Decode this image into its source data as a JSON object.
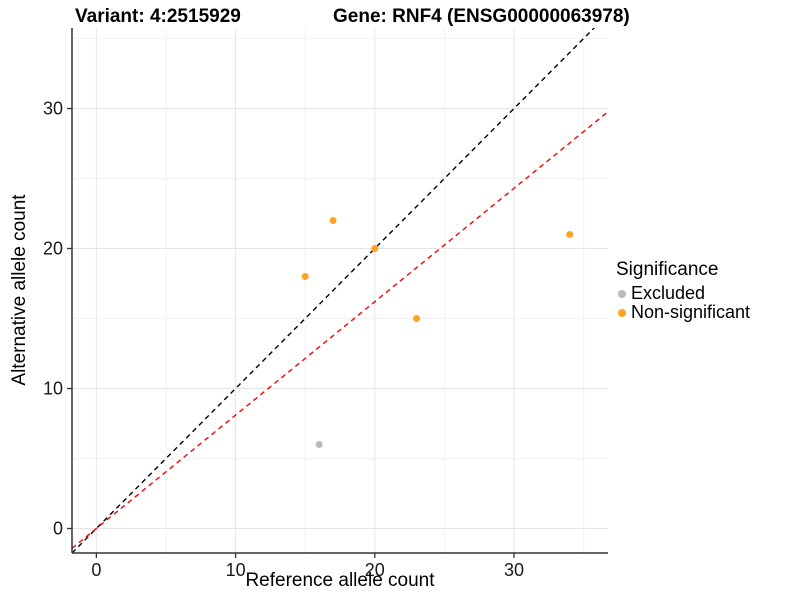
{
  "header": {
    "title_left": "Variant: 4:2515929",
    "title_right": "Gene: RNF4 (ENSG00000063978)"
  },
  "legend": {
    "title": "Significance",
    "items": [
      {
        "label": "Excluded",
        "color": "#b9b9b9"
      },
      {
        "label": "Non-significant",
        "color": "#ffa320"
      }
    ]
  },
  "chart_data": {
    "type": "scatter",
    "title": "Variant: 4:2515929  Gene: RNF4 (ENSG00000063978)",
    "xlabel": "Reference allele count",
    "ylabel": "Alternative allele count",
    "xlim": [
      -1.75,
      36.75
    ],
    "ylim": [
      -1.75,
      35.75
    ],
    "xticks": [
      0,
      10,
      20,
      30
    ],
    "yticks": [
      0,
      10,
      20,
      30
    ],
    "minor_xticks": [
      5,
      15,
      25,
      35
    ],
    "minor_yticks": [
      5,
      15,
      25,
      35
    ],
    "grid": true,
    "legend_position": "right",
    "series": [
      {
        "name": "Excluded",
        "color": "#b9b9b9",
        "points": [
          [
            16,
            6
          ]
        ]
      },
      {
        "name": "Non-significant",
        "color": "#ffa320",
        "points": [
          [
            15,
            18
          ],
          [
            17,
            22
          ],
          [
            20,
            20
          ],
          [
            23,
            15
          ],
          [
            34,
            21
          ]
        ]
      }
    ],
    "lines": [
      {
        "name": "identity-line",
        "color": "#000000",
        "dashed": true,
        "slope": 1.0,
        "intercept": 0
      },
      {
        "name": "expected-ratio-line",
        "color": "#ff0000",
        "dashed": true,
        "slope": 0.81,
        "intercept": 0
      }
    ],
    "colors": {
      "grid_major": "#e5e5e5",
      "grid_minor": "#f2f2f2",
      "axis_line": "#333333",
      "tick_mark": "#333333",
      "tick_text": "#1a1a1a",
      "background": "#ffffff"
    },
    "point_radius": 3.5
  }
}
